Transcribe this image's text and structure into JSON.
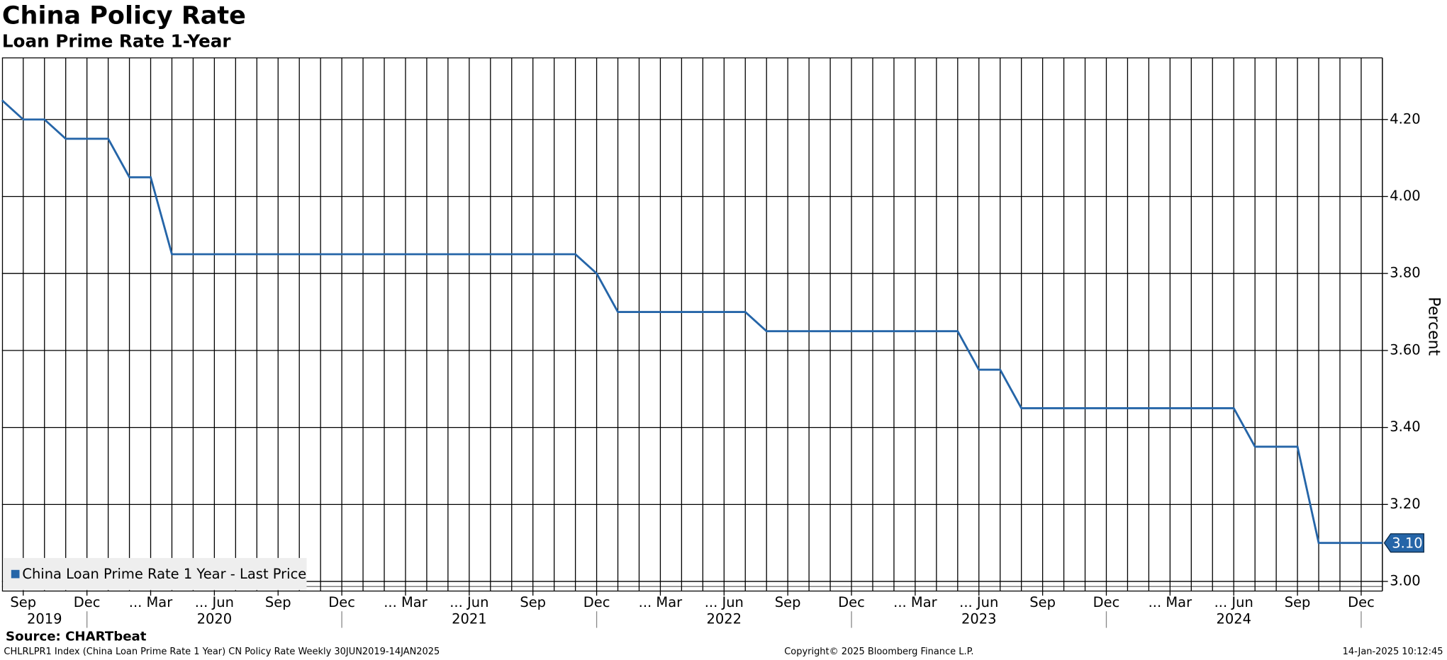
{
  "chart_data": {
    "type": "line",
    "title": "China Policy Rate",
    "subtitle": "Loan Prime Rate 1-Year",
    "y_axis_label": "Percent",
    "x": [
      "2019-08",
      "2019-09",
      "2019-10",
      "2019-11",
      "2019-12",
      "2020-01",
      "2020-02",
      "2020-03",
      "2020-04",
      "2020-05",
      "2020-06",
      "2020-07",
      "2020-08",
      "2020-09",
      "2020-10",
      "2020-11",
      "2020-12",
      "2021-01",
      "2021-02",
      "2021-03",
      "2021-04",
      "2021-05",
      "2021-06",
      "2021-07",
      "2021-08",
      "2021-09",
      "2021-10",
      "2021-11",
      "2021-12",
      "2022-01",
      "2022-02",
      "2022-03",
      "2022-04",
      "2022-05",
      "2022-06",
      "2022-07",
      "2022-08",
      "2022-09",
      "2022-10",
      "2022-11",
      "2022-12",
      "2023-01",
      "2023-02",
      "2023-03",
      "2023-04",
      "2023-05",
      "2023-06",
      "2023-07",
      "2023-08",
      "2023-09",
      "2023-10",
      "2023-11",
      "2023-12",
      "2024-01",
      "2024-02",
      "2024-03",
      "2024-04",
      "2024-05",
      "2024-06",
      "2024-07",
      "2024-08",
      "2024-09",
      "2024-10",
      "2024-11",
      "2024-12",
      "2025-01"
    ],
    "series": [
      {
        "name": "China Loan Prime Rate 1 Year - Last Price",
        "color": "#2565a8",
        "values": [
          4.25,
          4.2,
          4.2,
          4.15,
          4.15,
          4.15,
          4.05,
          4.05,
          3.85,
          3.85,
          3.85,
          3.85,
          3.85,
          3.85,
          3.85,
          3.85,
          3.85,
          3.85,
          3.85,
          3.85,
          3.85,
          3.85,
          3.85,
          3.85,
          3.85,
          3.85,
          3.85,
          3.85,
          3.8,
          3.7,
          3.7,
          3.7,
          3.7,
          3.7,
          3.7,
          3.7,
          3.65,
          3.65,
          3.65,
          3.65,
          3.65,
          3.65,
          3.65,
          3.65,
          3.65,
          3.65,
          3.55,
          3.55,
          3.45,
          3.45,
          3.45,
          3.45,
          3.45,
          3.45,
          3.45,
          3.45,
          3.45,
          3.45,
          3.45,
          3.35,
          3.35,
          3.35,
          3.1,
          3.1,
          3.1,
          3.1
        ],
        "value_labels": [
          null,
          null,
          null,
          null,
          null,
          null,
          null,
          null,
          null,
          null,
          null,
          null,
          null,
          null,
          null,
          null,
          null,
          null,
          null,
          null,
          null,
          null,
          null,
          null,
          null,
          null,
          null,
          null,
          null,
          null,
          null,
          null,
          null,
          null,
          null,
          null,
          null,
          null,
          null,
          null,
          null,
          null,
          null,
          null,
          null,
          null,
          null,
          null,
          null,
          null,
          null,
          null,
          null,
          null,
          null,
          null,
          null,
          null,
          null,
          null,
          null,
          null,
          null,
          null,
          null,
          "3.10"
        ]
      }
    ],
    "xlim": [
      "2019-08",
      "2025-01"
    ],
    "xticks": [
      {
        "value": "2019-09",
        "label": "Sep"
      },
      {
        "value": "2019-12",
        "label": "Dec"
      },
      {
        "value": "2020-03",
        "label": "... Mar"
      },
      {
        "value": "2020-06",
        "label": "... Jun"
      },
      {
        "value": "2020-09",
        "label": "Sep"
      },
      {
        "value": "2020-12",
        "label": "Dec"
      },
      {
        "value": "2021-03",
        "label": "... Mar"
      },
      {
        "value": "2021-06",
        "label": "... Jun"
      },
      {
        "value": "2021-09",
        "label": "Sep"
      },
      {
        "value": "2021-12",
        "label": "Dec"
      },
      {
        "value": "2022-03",
        "label": "... Mar"
      },
      {
        "value": "2022-06",
        "label": "... Jun"
      },
      {
        "value": "2022-09",
        "label": "Sep"
      },
      {
        "value": "2022-12",
        "label": "Dec"
      },
      {
        "value": "2023-03",
        "label": "... Mar"
      },
      {
        "value": "2023-06",
        "label": "... Jun"
      },
      {
        "value": "2023-09",
        "label": "Sep"
      },
      {
        "value": "2023-12",
        "label": "Dec"
      },
      {
        "value": "2024-03",
        "label": "... Mar"
      },
      {
        "value": "2024-06",
        "label": "... Jun"
      },
      {
        "value": "2024-09",
        "label": "Sep"
      },
      {
        "value": "2024-12",
        "label": "Dec"
      }
    ],
    "x_year_labels": [
      {
        "value": "2019-10",
        "label": "2019"
      },
      {
        "value": "2020-06",
        "label": "2020"
      },
      {
        "value": "2021-06",
        "label": "2021"
      },
      {
        "value": "2022-06",
        "label": "2022"
      },
      {
        "value": "2023-06",
        "label": "2023"
      },
      {
        "value": "2024-06",
        "label": "2024"
      }
    ],
    "ylim": [
      2.975,
      4.36
    ],
    "yticks": [
      {
        "value": 3,
        "label": "3.00"
      },
      {
        "value": 3.2,
        "label": "3.20"
      },
      {
        "value": 3.4,
        "label": "3.40"
      },
      {
        "value": 3.6,
        "label": "3.60"
      },
      {
        "value": 3.8,
        "label": "3.80"
      },
      {
        "value": 4,
        "label": "4.00"
      },
      {
        "value": 4.2,
        "label": "4.20"
      }
    ],
    "grid": true,
    "legend": "lower left",
    "source": "Source: CHARTbeat",
    "footer_left": "CHLRLPR1 Index (China Loan Prime Rate 1 Year) CN Policy Rate  Weekly 30JUN2019-14JAN2025",
    "footer_center": "Copyright© 2025 Bloomberg Finance L.P.",
    "footer_right": "14-Jan-2025 10:12:45"
  }
}
